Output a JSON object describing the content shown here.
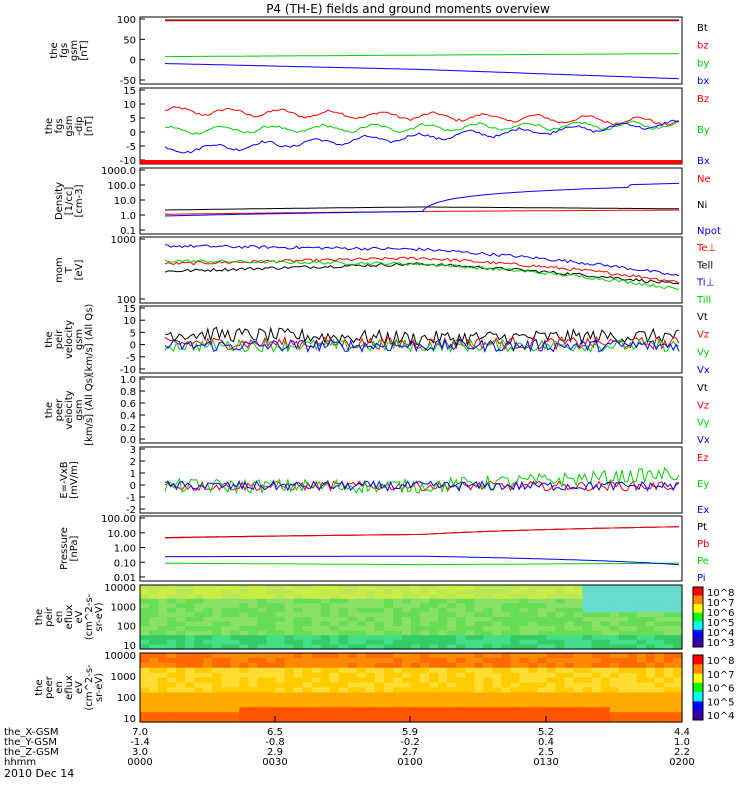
{
  "title": "P4 (TH-E) fields and ground moments overview",
  "date_label": "2010 Dec 14",
  "colors": {
    "black": "#000000",
    "red": "#ff0000",
    "green": "#00d000",
    "blue": "#0000ff"
  },
  "x_axis": {
    "tick_labels_time": [
      "0000",
      "0030",
      "0100",
      "0130",
      "0200"
    ],
    "rows": [
      {
        "label": "the_X-GSM",
        "values": [
          "7.0",
          "6.5",
          "5.9",
          "5.2",
          "4.4"
        ]
      },
      {
        "label": "the_Y-GSM",
        "values": [
          "-1.4",
          "-0.8",
          "-0.2",
          "0.4",
          "1.0"
        ]
      },
      {
        "label": "the_Z-GSM",
        "values": [
          "3.0",
          "2.9",
          "2.7",
          "2.5",
          "2.2"
        ]
      },
      {
        "label": "hhmm",
        "values": [
          "0000",
          "0030",
          "0100",
          "0130",
          "0200"
        ]
      }
    ]
  },
  "chart_data": [
    {
      "type": "line",
      "panel": "fgs_gsm",
      "ylabel": [
        "the",
        "fgs",
        "gsm",
        "[nT]"
      ],
      "ylim": [
        -75,
        110
      ],
      "yticks": [
        "100",
        "50",
        "0",
        "-50"
      ],
      "series": [
        {
          "name": "Bt",
          "color": "#000000",
          "shape": "const",
          "values": [
            110,
            110
          ]
        },
        {
          "name": "bz",
          "color": "#ff0000",
          "shape": "const",
          "values": [
            108,
            108
          ]
        },
        {
          "name": "by",
          "color": "#00d000",
          "shape": "ramp",
          "values": [
            -1,
            8
          ]
        },
        {
          "name": "bx",
          "color": "#0000ff",
          "shape": "curve",
          "values": [
            -22,
            -40,
            -68
          ]
        }
      ]
    },
    {
      "type": "line",
      "panel": "fgs_gsm_dip",
      "ylabel": [
        "the",
        "fgs",
        "gsm",
        "-dip",
        "[nT]"
      ],
      "ylim": [
        -15,
        17
      ],
      "yticks": [
        "15",
        "10",
        "5",
        "0",
        "-5",
        "-10"
      ],
      "series": [
        {
          "name": "Bz",
          "color": "#ff0000",
          "shape": "wave",
          "values": [
            8,
            3
          ]
        },
        {
          "name": "By",
          "color": "#00d000",
          "shape": "wave",
          "values": [
            -1,
            1.5
          ]
        },
        {
          "name": "Bx",
          "color": "#0000ff",
          "shape": "wave",
          "values": [
            -10,
            2
          ]
        }
      ]
    },
    {
      "type": "line",
      "panel": "density",
      "ylabel": [
        "Density",
        "[1/cc]",
        "[cm-3]"
      ],
      "ylim": [
        0.1,
        1000
      ],
      "log": true,
      "yticks": [
        "1000.0",
        "100.0",
        "10.0",
        "1.0",
        "0.1"
      ],
      "series": [
        {
          "name": "Ne",
          "color": "#ff0000",
          "values": [
            1.3,
            2,
            2.5
          ]
        },
        {
          "name": "Ni",
          "color": "#000000",
          "values": [
            2.5,
            4,
            3
          ]
        },
        {
          "name": "Npot",
          "color": "#0000ff",
          "values": [
            1.0,
            2,
            100
          ]
        }
      ]
    },
    {
      "type": "line",
      "panel": "mom_temp",
      "ylabel": [
        "mom",
        "T",
        "[eV]"
      ],
      "ylim": [
        100,
        1000
      ],
      "log": true,
      "yticks": [
        "1000",
        "100"
      ],
      "series": [
        {
          "name": "Te⊥",
          "color": "#ff0000",
          "values": [
            400,
            500,
            200
          ]
        },
        {
          "name": "Tell",
          "color": "#000000",
          "values": [
            300,
            400,
            180
          ]
        },
        {
          "name": "Ti⊥",
          "color": "#0000ff",
          "values": [
            800,
            700,
            250
          ]
        },
        {
          "name": "Till",
          "color": "#00d000",
          "values": [
            450,
            400,
            150
          ]
        }
      ]
    },
    {
      "type": "line",
      "panel": "peir_velocity",
      "ylabel": [
        "the",
        "peir",
        "velocity",
        "gsm",
        "[km/s] (All Qs)"
      ],
      "ylim": [
        -10,
        15
      ],
      "yticks": [
        "15",
        "10",
        "5",
        "0",
        "-5",
        "-10"
      ],
      "series": [
        {
          "name": "Vt",
          "color": "#000000",
          "values": [
            5,
            3,
            4
          ]
        },
        {
          "name": "Vz",
          "color": "#ff0000",
          "values": [
            1,
            1,
            1
          ]
        },
        {
          "name": "Vy",
          "color": "#00d000",
          "values": [
            0,
            0,
            0
          ]
        },
        {
          "name": "Vx",
          "color": "#0000ff",
          "values": [
            0,
            0,
            0
          ]
        }
      ]
    },
    {
      "type": "line",
      "panel": "peer_velocity",
      "ylabel": [
        "the",
        "peer",
        "velocity",
        "gsm",
        "[km/s] (All Qs)"
      ],
      "ylim": [
        0,
        1
      ],
      "yticks": [
        "1.0",
        "0.8",
        "0.6",
        "0.4",
        "0.2",
        "0.0"
      ],
      "series": [
        {
          "name": "Vt",
          "color": "#000000",
          "values": []
        },
        {
          "name": "Vz",
          "color": "#ff0000",
          "values": []
        },
        {
          "name": "Vy",
          "color": "#00d000",
          "values": []
        },
        {
          "name": "Vx",
          "color": "#0000ff",
          "values": []
        }
      ]
    },
    {
      "type": "line",
      "panel": "efield",
      "ylabel": [
        "E=-VxB",
        "[mV/m]"
      ],
      "ylim": [
        -2,
        3
      ],
      "yticks": [
        "3",
        "2",
        "1",
        "0",
        "-1",
        "-2"
      ],
      "series": [
        {
          "name": "Ez",
          "color": "#ff0000",
          "values": [
            0,
            0,
            0
          ]
        },
        {
          "name": "Ey",
          "color": "#00d000",
          "values": [
            0,
            0,
            1
          ]
        },
        {
          "name": "Ex",
          "color": "#0000ff",
          "values": [
            0,
            0,
            0
          ]
        }
      ]
    },
    {
      "type": "line",
      "panel": "pressure",
      "ylabel": [
        "Pressure",
        "[nPa]"
      ],
      "ylim": [
        0.01,
        100
      ],
      "log": true,
      "yticks": [
        "100.00",
        "10.00",
        "1.00",
        "0.10",
        "0.01"
      ],
      "series": [
        {
          "name": "Pt",
          "color": "#000000",
          "values": [
            5.5,
            9,
            30
          ]
        },
        {
          "name": "Pb",
          "color": "#ff0000",
          "values": [
            5.2,
            9,
            30
          ]
        },
        {
          "name": "Pe",
          "color": "#00d000",
          "values": [
            0.1,
            0.08,
            0.1
          ]
        },
        {
          "name": "Pi",
          "color": "#0000ff",
          "values": [
            0.28,
            0.3,
            0.08
          ]
        }
      ]
    },
    {
      "type": "heatmap",
      "panel": "peir_eflux",
      "ylabel": [
        "the",
        "peir",
        "en",
        "eflux",
        "eV",
        "(cm^2-s-",
        "sr-eV)"
      ],
      "yticks": [
        "10000",
        "1000",
        "100",
        "10"
      ],
      "colorbar_ticks": [
        "10^8",
        "10^7",
        "10^6",
        "10^5",
        "10^4",
        "10^3"
      ]
    },
    {
      "type": "heatmap",
      "panel": "peer_eflux",
      "ylabel": [
        "the",
        "peer",
        "en",
        "eflux",
        "eV",
        "(cm^2-s-",
        "sr-eV)"
      ],
      "yticks": [
        "10000",
        "1000",
        "100",
        "10"
      ],
      "colorbar_ticks": [
        "10^8",
        "10^7",
        "10^6",
        "10^5",
        "10^4"
      ]
    }
  ]
}
